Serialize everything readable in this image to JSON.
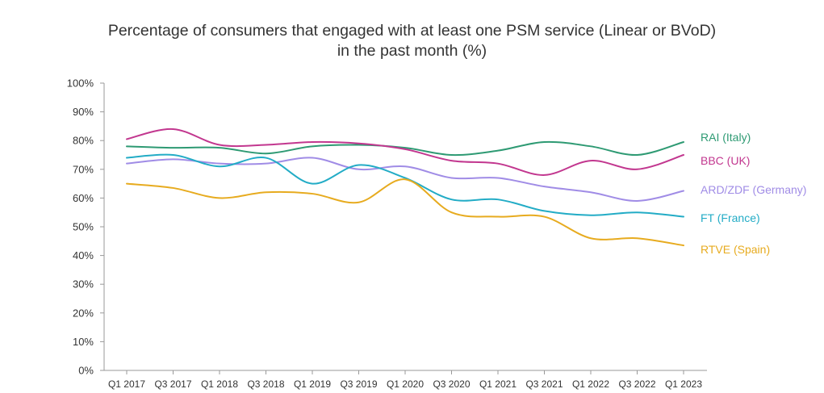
{
  "chart_data": {
    "type": "line",
    "title_line1": "Percentage of consumers that engaged with at least one PSM service (Linear or BVoD)",
    "title_line2": "in the past month (%)",
    "xlabel": "",
    "ylabel": "",
    "ylim": [
      0,
      100
    ],
    "y_ticks": [
      0,
      10,
      20,
      30,
      40,
      50,
      60,
      70,
      80,
      90,
      100
    ],
    "y_tick_labels": [
      "0%",
      "10%",
      "20%",
      "30%",
      "40%",
      "50%",
      "60%",
      "70%",
      "80%",
      "90%",
      "100%"
    ],
    "categories": [
      "Q1 2017",
      "Q3 2017",
      "Q1 2018",
      "Q3 2018",
      "Q1 2019",
      "Q3 2019",
      "Q1 2020",
      "Q3 2020",
      "Q1 2021",
      "Q3 2021",
      "Q1 2022",
      "Q3 2022",
      "Q1 2023"
    ],
    "grid": false,
    "legend": "right",
    "series": [
      {
        "name": "RAI (Italy)",
        "color": "#2e9a73",
        "values": [
          78,
          77.5,
          77.5,
          75.5,
          78,
          78.5,
          77.5,
          75,
          76.5,
          79.5,
          78,
          75,
          79.5
        ]
      },
      {
        "name": "BBC (UK)",
        "color": "#c2378f",
        "values": [
          80.5,
          84,
          78.5,
          78.5,
          79.5,
          79,
          77,
          73,
          72,
          68,
          73,
          70,
          75
        ]
      },
      {
        "name": "ARD/ZDF (Germany)",
        "color": "#a08ce6",
        "values": [
          72,
          73.5,
          72,
          72,
          74,
          70,
          71,
          67,
          67,
          64,
          62,
          59,
          62.5
        ]
      },
      {
        "name": "FT (France)",
        "color": "#23acc6",
        "values": [
          74,
          75,
          71,
          74,
          65,
          71.5,
          67,
          59.5,
          59.5,
          55.5,
          54,
          55,
          53.5
        ]
      },
      {
        "name": "RTVE (Spain)",
        "color": "#e7ab1f",
        "values": [
          65,
          63.5,
          60,
          62,
          61.5,
          58.5,
          66.5,
          55,
          53.5,
          53.5,
          46,
          46,
          43.5
        ]
      }
    ]
  }
}
